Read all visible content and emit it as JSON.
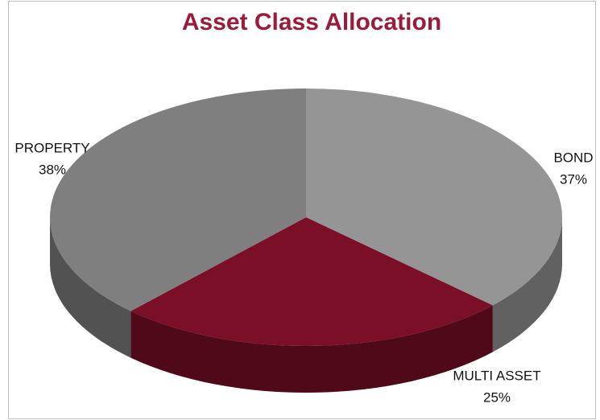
{
  "chart_data": {
    "type": "pie3d",
    "title": "Asset Class Allocation",
    "categories": [
      "BOND",
      "MULTI ASSET",
      "PROPERTY"
    ],
    "values": [
      37,
      25,
      38
    ],
    "value_labels": [
      "37%",
      "25%",
      "38%"
    ],
    "colors": [
      "#959595",
      "#7b0f27",
      "#7f7f7f"
    ]
  }
}
